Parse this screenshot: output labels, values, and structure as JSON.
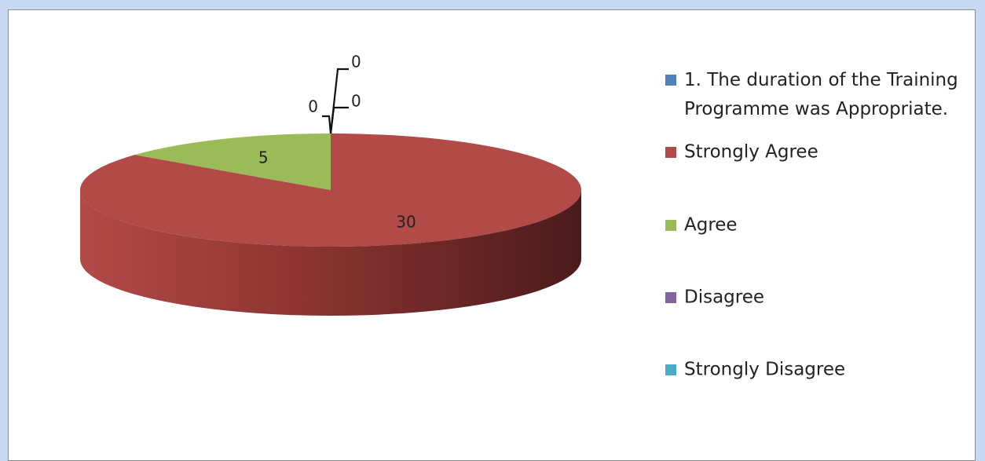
{
  "chart_data": {
    "type": "pie",
    "style": "3d",
    "categories": [
      "1. The duration of the Training Programme was Appropriate.",
      "Strongly Agree",
      "Agree",
      "Disagree",
      "Strongly Disagree"
    ],
    "values": [
      0,
      30,
      5,
      0,
      0
    ],
    "data_labels": [
      "0",
      "30",
      "5",
      "0",
      "0"
    ],
    "colors": [
      "#4f81bd",
      "#b24a47",
      "#9bbb59",
      "#8064a2",
      "#4bacc6"
    ],
    "legend_placement": "right",
    "title": ""
  }
}
